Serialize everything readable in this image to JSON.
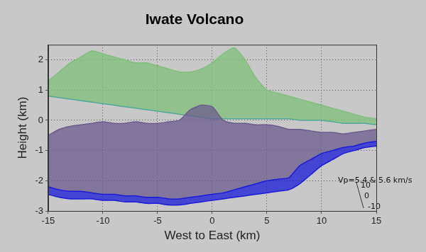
{
  "chart_data": {
    "type": "area",
    "title": "Iwate Volcano",
    "x_label": "West to East (km)",
    "y_label": "Height (km)",
    "x": [
      -15,
      -14,
      -13,
      -12,
      -11,
      -10,
      -9,
      -8,
      -7,
      -6,
      -5,
      -4,
      -3,
      -2,
      -1,
      0,
      1,
      2,
      3,
      4,
      5,
      6,
      7,
      8,
      9,
      10,
      11,
      12,
      13,
      14,
      15
    ],
    "series": [
      {
        "type": "line",
        "color": "#1a1ad8",
        "values": [
          -2.45,
          -2.55,
          -2.6,
          -2.6,
          -2.6,
          -2.65,
          -2.65,
          -2.7,
          -2.7,
          -2.75,
          -2.75,
          -2.8,
          -2.8,
          -2.75,
          -2.7,
          -2.65,
          -2.6,
          -2.55,
          -2.5,
          -2.45,
          -2.4,
          -2.35,
          -2.3,
          -2.1,
          -1.8,
          -1.5,
          -1.3,
          -1.1,
          -1.0,
          -0.9,
          -0.85
        ]
      },
      {
        "type": "area",
        "color": "#1a1ad8",
        "values": [
          -2.2,
          -2.3,
          -2.35,
          -2.35,
          -2.4,
          -2.45,
          -2.45,
          -2.5,
          -2.5,
          -2.55,
          -2.55,
          -2.6,
          -2.6,
          -2.55,
          -2.5,
          -2.45,
          -2.4,
          -2.3,
          -2.2,
          -2.1,
          -2.0,
          -1.95,
          -1.9,
          -1.5,
          -1.3,
          -1.1,
          -1.0,
          -0.9,
          -0.85,
          -0.75,
          -0.7
        ]
      },
      {
        "type": "area",
        "color": "#6b5b8e",
        "values": [
          -0.5,
          -0.3,
          -0.2,
          -0.15,
          -0.1,
          -0.05,
          -0.1,
          -0.1,
          -0.05,
          -0.1,
          -0.1,
          -0.05,
          0.0,
          0.35,
          0.5,
          0.45,
          0.0,
          -0.1,
          -0.1,
          -0.15,
          -0.15,
          -0.2,
          -0.3,
          -0.3,
          -0.35,
          -0.4,
          -0.4,
          -0.45,
          -0.4,
          -0.35,
          -0.3
        ]
      },
      {
        "type": "line",
        "color": "#4fa89a",
        "values": [
          0.8,
          0.75,
          0.7,
          0.65,
          0.6,
          0.55,
          0.5,
          0.45,
          0.4,
          0.35,
          0.3,
          0.25,
          0.2,
          0.15,
          0.1,
          0.05,
          0.05,
          0.05,
          0.05,
          0.05,
          0.05,
          0.05,
          0.05,
          0.0,
          0.0,
          0.0,
          -0.05,
          -0.1,
          -0.1,
          -0.1,
          -0.15
        ]
      },
      {
        "type": "area",
        "color": "#7fbf7a",
        "values": [
          1.3,
          1.6,
          1.9,
          2.1,
          2.3,
          2.2,
          2.1,
          2.0,
          1.9,
          1.9,
          1.8,
          1.7,
          1.6,
          1.6,
          1.7,
          1.9,
          2.2,
          2.4,
          2.0,
          1.4,
          1.0,
          0.9,
          0.8,
          0.7,
          0.6,
          0.5,
          0.4,
          0.3,
          0.2,
          0.1,
          0.05
        ]
      }
    ],
    "xlim": [
      -15,
      15
    ],
    "xticks": [
      -15,
      -10,
      -5,
      0,
      5,
      10,
      15
    ],
    "ylim": [
      -3,
      2.5
    ],
    "yticks": [
      -3,
      -2,
      -1,
      0,
      1,
      2
    ],
    "grid": true,
    "annotations": [
      {
        "text": "Vp=5.4 & 5.6 km/s",
        "x": 11.5,
        "y": -2.0
      }
    ],
    "zticks": [
      10,
      0,
      -10
    ]
  }
}
